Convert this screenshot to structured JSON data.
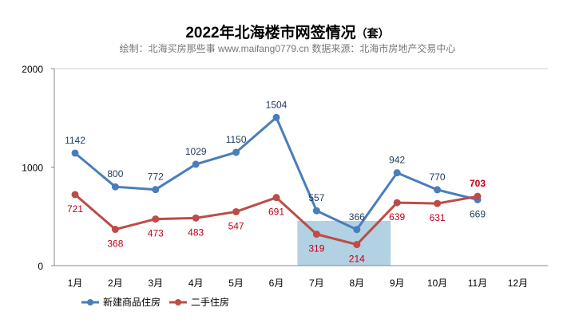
{
  "chart_data": {
    "type": "line",
    "title": "2022年北海楼市网签情况",
    "title_unit": "（套）",
    "subtitle": "绘制：北海买房那些事 www.maifang0779.cn 数据来源：北海市房地产交易中心",
    "categories": [
      "1月",
      "2月",
      "3月",
      "4月",
      "5月",
      "6月",
      "7月",
      "8月",
      "9月",
      "10月",
      "11月",
      "12月"
    ],
    "ylim": [
      0,
      2000
    ],
    "yticks": [
      "0",
      "1000",
      "2000"
    ],
    "grid": false,
    "legend_position": "bottom-left",
    "series": [
      {
        "name": "新建商品住房",
        "color": "#4a7ebb",
        "values": [
          1142,
          800,
          772,
          1029,
          1150,
          1504,
          557,
          366,
          942,
          770,
          669,
          null
        ]
      },
      {
        "name": "二手住房",
        "color": "#be4b48",
        "values": [
          721,
          368,
          473,
          483,
          547,
          691,
          319,
          214,
          639,
          631,
          703,
          null
        ]
      }
    ],
    "highlight_band": {
      "from": "7月",
      "to": "9月",
      "color": "#9fc5db"
    },
    "watermark": [
      "北海买房那些事",
      "maifang0779.cn"
    ]
  }
}
